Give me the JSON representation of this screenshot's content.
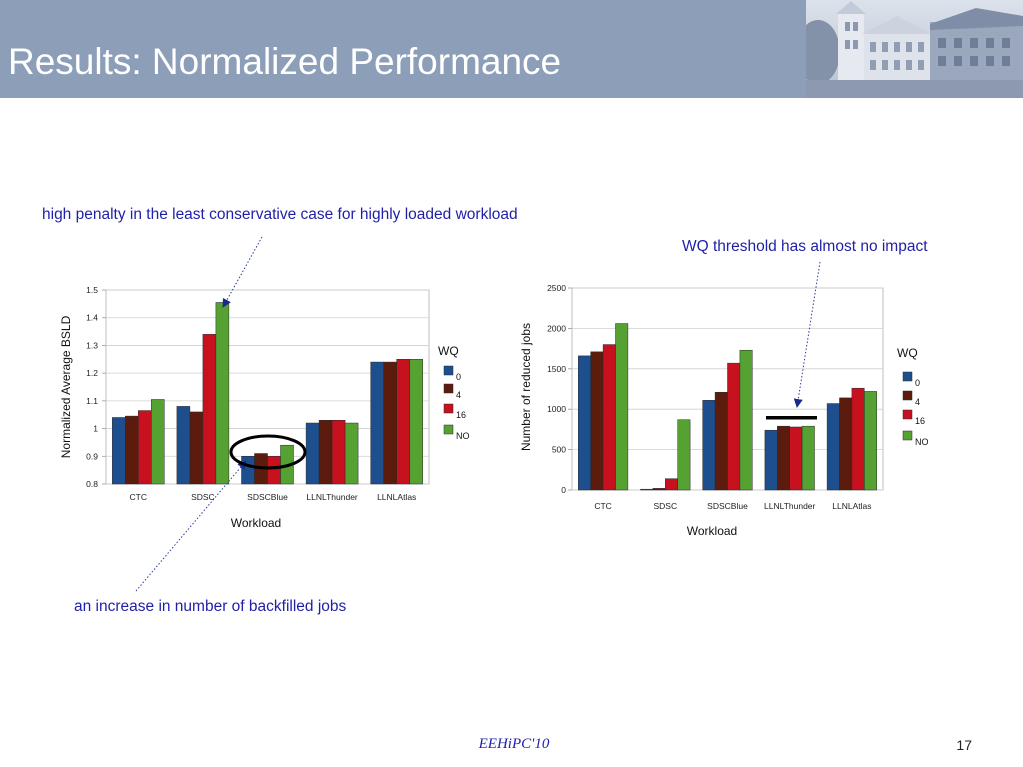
{
  "slide": {
    "title": "Results: Normalized Performance",
    "annotations": {
      "high_penalty": "high penalty in the least conservative case for highly loaded workload",
      "wq_threshold": "WQ threshold has almost no impact",
      "backfilled_jobs": "an increase in number of backfilled jobs"
    },
    "footer": {
      "conference": "EEHiPC'10",
      "page_number": "17"
    }
  },
  "icons": {
    "header_image": "campus-building-photo",
    "annotation_pointer": "dotted-arrow"
  },
  "colors": {
    "header_background": "#8d9eb9",
    "title_text": "#ffffff",
    "annotation_text": "#1f1fa8",
    "highlight": "#000000",
    "series": [
      "#1d4f8f",
      "#5b1b0d",
      "#c8111f",
      "#55a232"
    ]
  },
  "chart_data": [
    {
      "type": "bar",
      "categories": [
        "CTC",
        "SDSC",
        "SDSCBlue",
        "LLNLThunder",
        "LLNLAtlas"
      ],
      "series": [
        {
          "name": "0",
          "values": [
            1.04,
            1.08,
            0.9,
            1.02,
            1.24
          ]
        },
        {
          "name": "4",
          "values": [
            1.045,
            1.06,
            0.91,
            1.03,
            1.24
          ]
        },
        {
          "name": "16",
          "values": [
            1.065,
            1.34,
            0.9,
            1.03,
            1.25
          ]
        },
        {
          "name": "NO",
          "values": [
            1.105,
            1.455,
            0.94,
            1.02,
            1.25
          ]
        }
      ],
      "legend_title": "WQ",
      "xlabel": "Workload",
      "ylabel": "Normalized Average BSLD",
      "ylim": [
        0.8,
        1.5
      ],
      "yticks": [
        "0.8",
        "0.9",
        "1",
        "1.1",
        "1.2",
        "1.3",
        "1.4",
        "1.5"
      ],
      "grid": true,
      "legend": "right"
    },
    {
      "type": "bar",
      "categories": [
        "CTC",
        "SDSC",
        "SDSCBlue",
        "LLNLThunder",
        "LLNLAtlas"
      ],
      "series": [
        {
          "name": "0",
          "values": [
            1660,
            10,
            1110,
            740,
            1070
          ]
        },
        {
          "name": "4",
          "values": [
            1710,
            20,
            1210,
            790,
            1140
          ]
        },
        {
          "name": "16",
          "values": [
            1800,
            140,
            1570,
            780,
            1260
          ]
        },
        {
          "name": "NO",
          "values": [
            2060,
            870,
            1730,
            790,
            1220
          ]
        }
      ],
      "legend_title": "WQ",
      "xlabel": "Workload",
      "ylabel": "Number of reduced jobs",
      "ylim": [
        0,
        2500
      ],
      "yticks": [
        "0",
        "500",
        "1000",
        "1500",
        "2000",
        "2500"
      ],
      "grid": true,
      "legend": "right"
    }
  ]
}
